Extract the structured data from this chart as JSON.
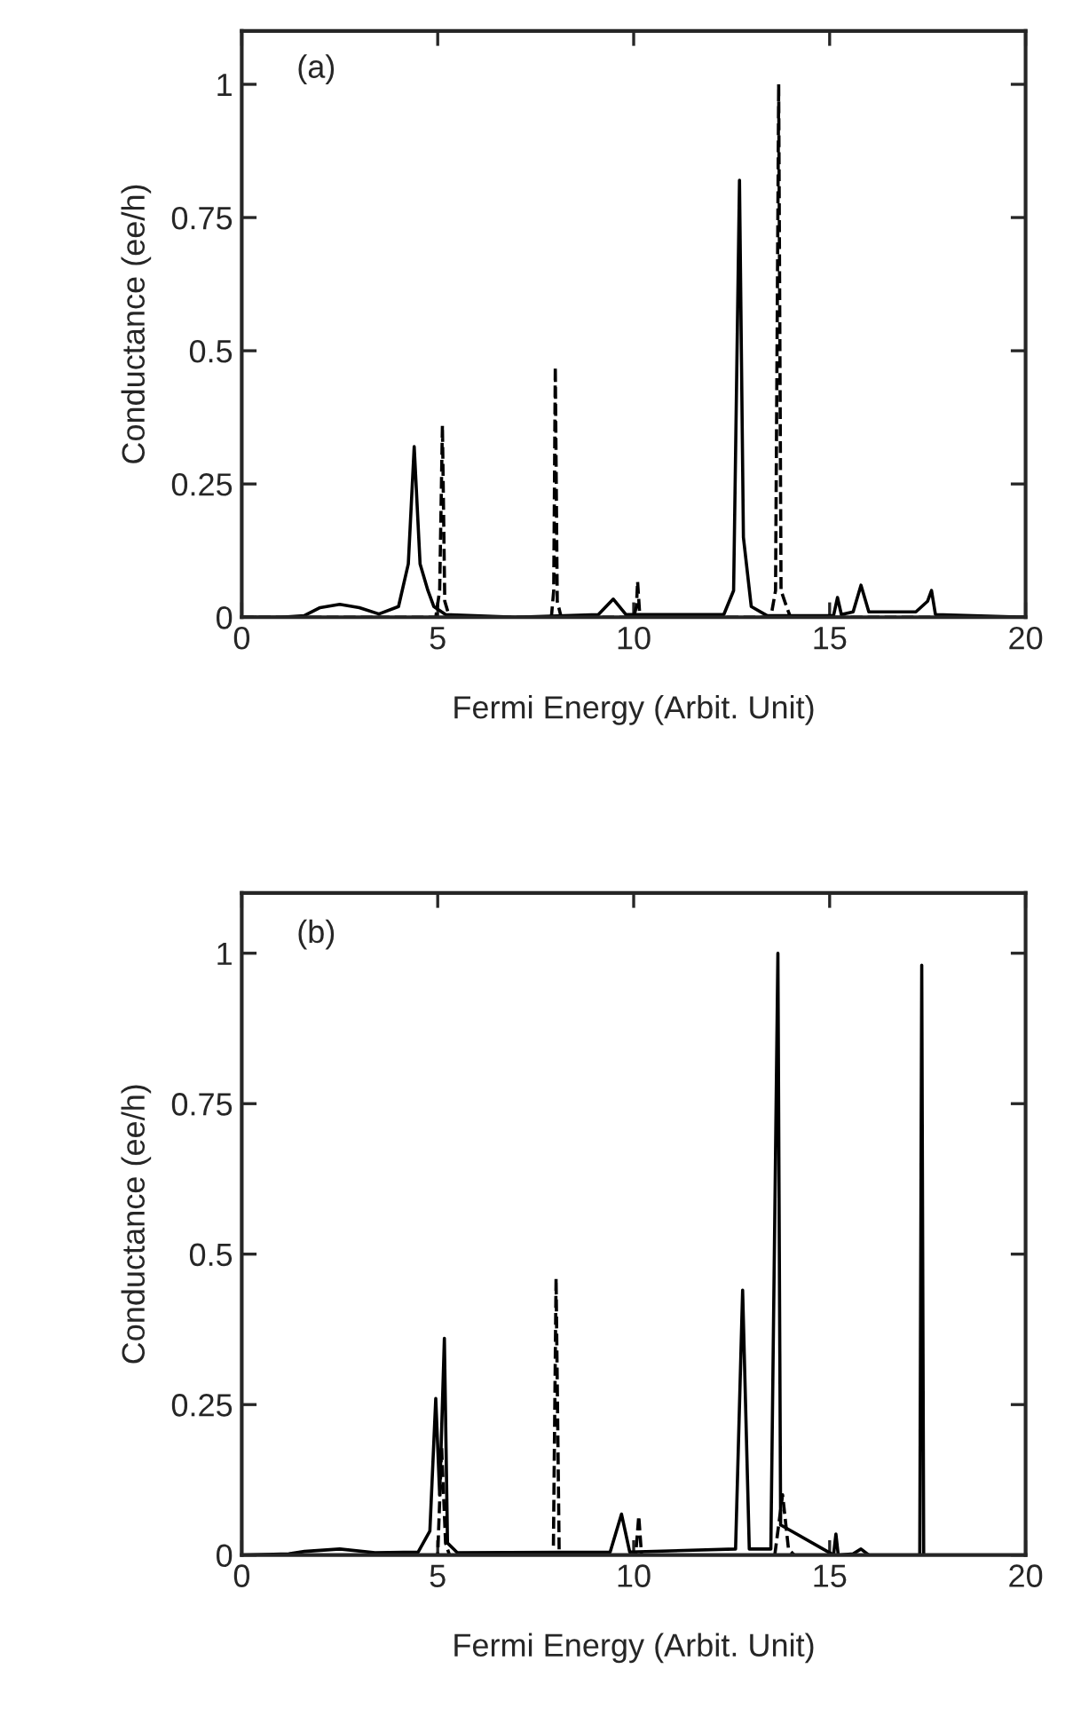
{
  "chart_data": [
    {
      "type": "line",
      "xlabel": "Fermi Energy (Arbit. Unit)",
      "ylabel": "Conductance (ee/h)",
      "annotations": [
        "(a)"
      ],
      "xlim": [
        0,
        20
      ],
      "xticks": [
        0,
        5,
        10,
        15,
        20
      ],
      "ylim": [
        0,
        1.1
      ],
      "yticks": [
        0,
        0.25,
        0.5,
        0.75,
        1
      ],
      "grid": false,
      "legend": false,
      "series": [
        {
          "color": "#000000",
          "line_style": "solid",
          "x": [
            0,
            1,
            1.6,
            2.0,
            2.5,
            3.0,
            3.5,
            4.0,
            4.25,
            4.4,
            4.55,
            4.75,
            4.9,
            5.2,
            7,
            9.1,
            9.48,
            9.8,
            12.3,
            12.55,
            12.7,
            12.8,
            13.0,
            13.4,
            15.1,
            15.2,
            15.3,
            15.6,
            15.8,
            16.0,
            17.2,
            17.5,
            17.6,
            17.7,
            20
          ],
          "values": [
            0,
            0,
            0.003,
            0.018,
            0.024,
            0.018,
            0.006,
            0.02,
            0.1,
            0.32,
            0.1,
            0.05,
            0.02,
            0.005,
            0,
            0.005,
            0.034,
            0.005,
            0.005,
            0.05,
            0.82,
            0.15,
            0.02,
            0.003,
            0.003,
            0.037,
            0.005,
            0.01,
            0.06,
            0.01,
            0.01,
            0.03,
            0.05,
            0.005,
            0
          ]
        },
        {
          "color": "#000000",
          "line_style": "dashed",
          "x": [
            0,
            4.95,
            5.05,
            5.12,
            5.18,
            5.3,
            7.9,
            7.96,
            8.0,
            8.05,
            8.15,
            10.0,
            10.07,
            10.1,
            10.15,
            10.3,
            13.5,
            13.62,
            13.7,
            13.76,
            13.9,
            14.0,
            20
          ],
          "values": [
            0,
            0,
            0.05,
            0.36,
            0.03,
            0,
            0,
            0.05,
            0.47,
            0.03,
            0,
            0,
            0.02,
            0.067,
            0.01,
            0,
            0,
            0.05,
            1.0,
            0.05,
            0.02,
            0,
            0
          ]
        }
      ]
    },
    {
      "type": "line",
      "xlabel": "Fermi Energy (Arbit. Unit)",
      "ylabel": "Conductance (ee/h)",
      "annotations": [
        "(b)"
      ],
      "xlim": [
        0,
        20
      ],
      "xticks": [
        0,
        5,
        10,
        15,
        20
      ],
      "ylim": [
        0,
        1.1
      ],
      "yticks": [
        0,
        0.25,
        0.5,
        0.75,
        1
      ],
      "grid": false,
      "legend": false,
      "series": [
        {
          "color": "#000000",
          "line_style": "solid",
          "x": [
            0,
            1.2,
            1.6,
            2.5,
            3.4,
            4.5,
            4.8,
            4.95,
            5.05,
            5.17,
            5.25,
            5.5,
            9.4,
            9.69,
            9.9,
            12.6,
            12.78,
            12.95,
            13.5,
            13.68,
            13.75,
            15.1,
            15.16,
            15.22,
            15.6,
            15.8,
            16,
            17.3,
            17.35,
            17.4,
            20
          ],
          "values": [
            0,
            0.002,
            0.006,
            0.01,
            0.004,
            0.005,
            0.04,
            0.26,
            0.1,
            0.36,
            0.02,
            0.004,
            0.005,
            0.068,
            0.005,
            0.01,
            0.44,
            0.01,
            0.01,
            1.0,
            0.05,
            0,
            0.035,
            0,
            0.002,
            0.01,
            0,
            0,
            0.98,
            0,
            0
          ]
        },
        {
          "color": "#000000",
          "line_style": "dashed",
          "x": [
            0,
            5.0,
            5.1,
            5.2,
            5.3,
            7.95,
            8.02,
            8.1,
            10.05,
            10.13,
            10.2,
            13.6,
            13.8,
            13.95,
            14.1,
            20
          ],
          "values": [
            0,
            0,
            0.18,
            0.02,
            0,
            0,
            0.46,
            0,
            0,
            0.065,
            0,
            0,
            0.1,
            0.01,
            0,
            0
          ]
        }
      ]
    }
  ]
}
